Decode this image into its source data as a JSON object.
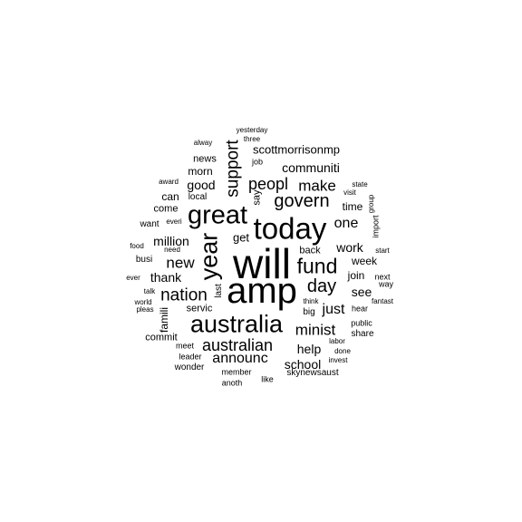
{
  "wordcloud": {
    "word_color": "#000000",
    "background_color": "#ffffff",
    "words": [
      {
        "text": "will",
        "weight": 46,
        "vertical": false
      },
      {
        "text": "amp",
        "weight": 40,
        "vertical": false
      },
      {
        "text": "today",
        "weight": 33,
        "vertical": false
      },
      {
        "text": "great",
        "weight": 29,
        "vertical": false
      },
      {
        "text": "year",
        "weight": 27,
        "vertical": true
      },
      {
        "text": "australia",
        "weight": 27,
        "vertical": false
      },
      {
        "text": "fund",
        "weight": 23,
        "vertical": false
      },
      {
        "text": "govern",
        "weight": 20,
        "vertical": false
      },
      {
        "text": "day",
        "weight": 20,
        "vertical": false
      },
      {
        "text": "nation",
        "weight": 19,
        "vertical": false
      },
      {
        "text": "support",
        "weight": 19,
        "vertical": true
      },
      {
        "text": "peopl",
        "weight": 18,
        "vertical": false
      },
      {
        "text": "australian",
        "weight": 18,
        "vertical": false
      },
      {
        "text": "make",
        "weight": 17,
        "vertical": false
      },
      {
        "text": "minist",
        "weight": 17,
        "vertical": false
      },
      {
        "text": "new",
        "weight": 17,
        "vertical": false
      },
      {
        "text": "just",
        "weight": 16,
        "vertical": false
      },
      {
        "text": "one",
        "weight": 16,
        "vertical": false
      },
      {
        "text": "announc",
        "weight": 16,
        "vertical": false
      },
      {
        "text": "communiti",
        "weight": 14,
        "vertical": false
      },
      {
        "text": "work",
        "weight": 14,
        "vertical": false
      },
      {
        "text": "million",
        "weight": 14,
        "vertical": false
      },
      {
        "text": "school",
        "weight": 14,
        "vertical": false
      },
      {
        "text": "help",
        "weight": 14,
        "vertical": false
      },
      {
        "text": "good",
        "weight": 14,
        "vertical": false
      },
      {
        "text": "thank",
        "weight": 14,
        "vertical": false
      },
      {
        "text": "see",
        "weight": 14,
        "vertical": false
      },
      {
        "text": "scottmorrisonmp",
        "weight": 13,
        "vertical": false
      },
      {
        "text": "get",
        "weight": 13,
        "vertical": false
      },
      {
        "text": "join",
        "weight": 12,
        "vertical": false
      },
      {
        "text": "morn",
        "weight": 12,
        "vertical": false
      },
      {
        "text": "time",
        "weight": 12,
        "vertical": false
      },
      {
        "text": "week",
        "weight": 12,
        "vertical": false
      },
      {
        "text": "famili",
        "weight": 12,
        "vertical": true
      },
      {
        "text": "can",
        "weight": 12,
        "vertical": false
      },
      {
        "text": "back",
        "weight": 11,
        "vertical": false
      },
      {
        "text": "come",
        "weight": 11,
        "vertical": false
      },
      {
        "text": "news",
        "weight": 11,
        "vertical": false
      },
      {
        "text": "servic",
        "weight": 11,
        "vertical": false
      },
      {
        "text": "commit",
        "weight": 11,
        "vertical": false
      },
      {
        "text": "say",
        "weight": 11,
        "vertical": true
      },
      {
        "text": "big",
        "weight": 10,
        "vertical": false
      },
      {
        "text": "busi",
        "weight": 10,
        "vertical": false
      },
      {
        "text": "want",
        "weight": 10,
        "vertical": false
      },
      {
        "text": "local",
        "weight": 10,
        "vertical": false
      },
      {
        "text": "skynewsaust",
        "weight": 10,
        "vertical": false
      },
      {
        "text": "share",
        "weight": 10,
        "vertical": false
      },
      {
        "text": "last",
        "weight": 10,
        "vertical": true
      },
      {
        "text": "wonder",
        "weight": 10,
        "vertical": false
      },
      {
        "text": "public",
        "weight": 9,
        "vertical": false
      },
      {
        "text": "hear",
        "weight": 9,
        "vertical": false
      },
      {
        "text": "job",
        "weight": 9,
        "vertical": false
      },
      {
        "text": "meet",
        "weight": 9,
        "vertical": false
      },
      {
        "text": "leader",
        "weight": 9,
        "vertical": false
      },
      {
        "text": "member",
        "weight": 9,
        "vertical": false
      },
      {
        "text": "anoth",
        "weight": 9,
        "vertical": false
      },
      {
        "text": "like",
        "weight": 9,
        "vertical": false
      },
      {
        "text": "import",
        "weight": 9,
        "vertical": true
      },
      {
        "text": "next",
        "weight": 9,
        "vertical": false
      },
      {
        "text": "way",
        "weight": 9,
        "vertical": false
      },
      {
        "text": "fantast",
        "weight": 8,
        "vertical": false
      },
      {
        "text": "labor",
        "weight": 8,
        "vertical": false
      },
      {
        "text": "done",
        "weight": 8,
        "vertical": false
      },
      {
        "text": "invest",
        "weight": 8,
        "vertical": false
      },
      {
        "text": "think",
        "weight": 8,
        "vertical": false
      },
      {
        "text": "food",
        "weight": 8,
        "vertical": false
      },
      {
        "text": "need",
        "weight": 8,
        "vertical": false
      },
      {
        "text": "everi",
        "weight": 8,
        "vertical": false
      },
      {
        "text": "award",
        "weight": 8,
        "vertical": false
      },
      {
        "text": "talk",
        "weight": 8,
        "vertical": false
      },
      {
        "text": "ever",
        "weight": 8,
        "vertical": false
      },
      {
        "text": "world",
        "weight": 8,
        "vertical": false
      },
      {
        "text": "pleas",
        "weight": 8,
        "vertical": false
      },
      {
        "text": "visit",
        "weight": 8,
        "vertical": false
      },
      {
        "text": "state",
        "weight": 8,
        "vertical": false
      },
      {
        "text": "group",
        "weight": 8,
        "vertical": true
      },
      {
        "text": "start",
        "weight": 8,
        "vertical": false
      },
      {
        "text": "alway",
        "weight": 8,
        "vertical": false
      },
      {
        "text": "yesterday",
        "weight": 8,
        "vertical": false
      },
      {
        "text": "three",
        "weight": 8,
        "vertical": false
      }
    ]
  }
}
